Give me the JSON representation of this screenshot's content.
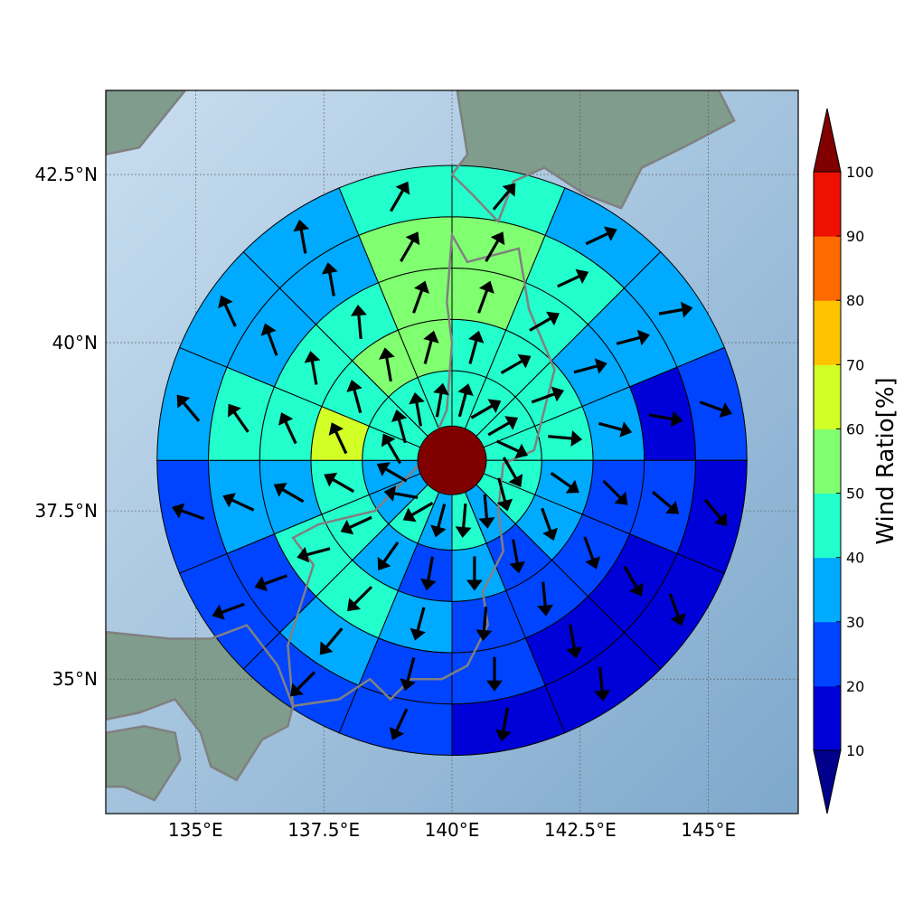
{
  "map": {
    "lon_range": [
      133.25,
      146.75
    ],
    "lat_range": [
      33.0,
      43.75
    ],
    "lon_ticks": [
      {
        "value": 135.0,
        "label": "135°E"
      },
      {
        "value": 137.5,
        "label": "137.5°E"
      },
      {
        "value": 140.0,
        "label": "140°E"
      },
      {
        "value": 142.5,
        "label": "142.5°E"
      },
      {
        "value": 145.0,
        "label": "145°E"
      }
    ],
    "lat_ticks": [
      {
        "value": 35.0,
        "label": "35°N"
      },
      {
        "value": 37.5,
        "label": "37.5°N"
      },
      {
        "value": 40.0,
        "label": "40°N"
      },
      {
        "value": 42.5,
        "label": "42.5°N"
      }
    ],
    "gridlines": true,
    "center": {
      "lon": 140.0,
      "lat": 38.25
    },
    "ring_radii_deg": [
      0.65,
      1.75,
      2.75,
      3.75,
      4.75,
      5.75
    ],
    "colors": {
      "ocean_light": "#c9deef",
      "ocean_dark": "#7ea8cc",
      "land": "#7f9c8c",
      "coast": "#808080",
      "center_disk": "#800000"
    }
  },
  "colorbar": {
    "title": "Wind Ratio[%]",
    "levels": [
      10,
      20,
      30,
      40,
      50,
      60,
      70,
      80,
      90,
      100
    ],
    "colors": [
      "#0000d8",
      "#0044ff",
      "#00aaff",
      "#22ffcc",
      "#80ff70",
      "#d2ff26",
      "#ffc400",
      "#ff6a00",
      "#ee1000"
    ],
    "under_color": "#00008c",
    "over_color": "#800000"
  },
  "chart_data": {
    "type": "polar-grid",
    "ring_labels": [
      "ring1",
      "ring2",
      "ring3",
      "ring4",
      "ring5"
    ],
    "sectors_per_ring": 16,
    "sector_order": "clockwise from north",
    "wind_ratio": [
      [
        45,
        45,
        45,
        45,
        45,
        45,
        35,
        45,
        35,
        45,
        35,
        35,
        45,
        45,
        45,
        45
      ],
      [
        45,
        45,
        45,
        45,
        35,
        35,
        25,
        35,
        25,
        35,
        45,
        45,
        65,
        45,
        55,
        55
      ],
      [
        55,
        45,
        35,
        35,
        25,
        25,
        25,
        25,
        35,
        45,
        45,
        35,
        45,
        45,
        45,
        55
      ],
      [
        55,
        45,
        35,
        15,
        25,
        15,
        15,
        25,
        25,
        35,
        25,
        35,
        45,
        35,
        35,
        55
      ],
      [
        45,
        35,
        35,
        25,
        15,
        15,
        15,
        15,
        25,
        25,
        25,
        25,
        35,
        35,
        35,
        45
      ]
    ],
    "wind_direction_deg": [
      [
        15,
        60,
        60,
        115,
        150,
        165,
        175,
        185,
        195,
        240,
        280,
        300,
        330,
        345,
        350,
        10
      ],
      [
        15,
        60,
        70,
        95,
        125,
        160,
        170,
        180,
        190,
        215,
        245,
        300,
        335,
        345,
        350,
        15
      ],
      [
        20,
        60,
        75,
        105,
        135,
        160,
        175,
        185,
        195,
        225,
        255,
        300,
        335,
        350,
        355,
        20
      ],
      [
        30,
        65,
        75,
        100,
        130,
        150,
        170,
        180,
        195,
        220,
        250,
        295,
        325,
        340,
        350,
        30
      ],
      [
        40,
        65,
        80,
        110,
        140,
        160,
        175,
        190,
        205,
        225,
        250,
        290,
        320,
        335,
        350,
        30
      ]
    ]
  }
}
